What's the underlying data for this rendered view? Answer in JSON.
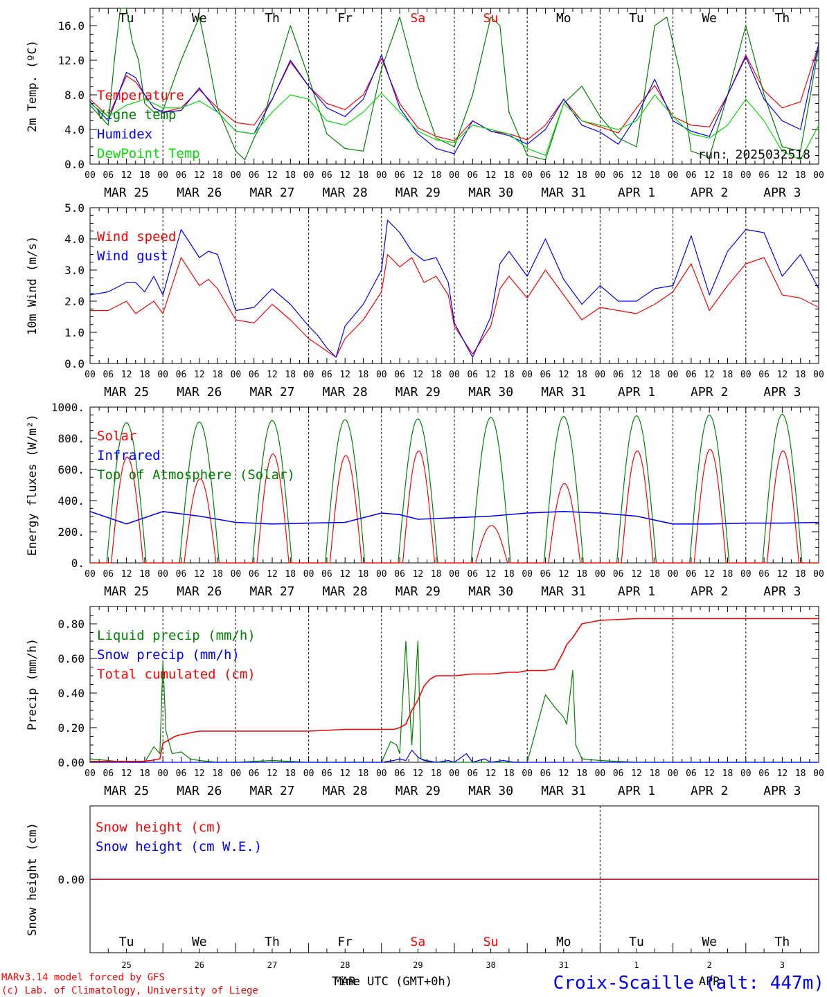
{
  "footer": {
    "model": "MARv3.14 model forced by GFS",
    "lab": "(c) Lab. of Climatology, University of Liege",
    "station": "Croix-Scaille (alt: 447m)",
    "xlabel": "Time UTC (GMT+0h)",
    "month_mar": "MAR",
    "month_apr": "APR"
  },
  "colors": {
    "red": "#ff0000",
    "green": "#008000",
    "blue": "#0000ff",
    "lightgreen": "#00e000"
  },
  "hour_ticks": [
    "00",
    "06",
    "12",
    "18"
  ],
  "dates": [
    "MAR 25",
    "MAR 26",
    "MAR 27",
    "MAR 28",
    "MAR 29",
    "MAR 30",
    "MAR 31",
    "APR  1",
    "APR  2",
    "APR  3"
  ],
  "weekdays": [
    {
      "label": "Tu",
      "weekend": false
    },
    {
      "label": "We",
      "weekend": false
    },
    {
      "label": "Th",
      "weekend": false
    },
    {
      "label": "Fr",
      "weekend": false
    },
    {
      "label": "Sa",
      "weekend": true
    },
    {
      "label": "Su",
      "weekend": true
    },
    {
      "label": "Mo",
      "weekend": false
    },
    {
      "label": "Tu",
      "weekend": false
    },
    {
      "label": "We",
      "weekend": false
    },
    {
      "label": "Th",
      "weekend": false
    }
  ],
  "bottom_days": [
    "25",
    "26",
    "27",
    "28",
    "29",
    "30",
    "31",
    "1",
    "2",
    "3"
  ],
  "chart_data": [
    {
      "type": "line",
      "ylabel": "2m Temp. (ºC)",
      "ylim": [
        0,
        18
      ],
      "yticks": [
        "0.0",
        "4.0",
        "8.0",
        "12.0",
        "16.0"
      ],
      "run_label": "run: 2025032518",
      "x_unit": "hours since MAR 25 00 UTC",
      "series": [
        {
          "name": "Temperature",
          "color": "red",
          "x": [
            0,
            6,
            12,
            15,
            18,
            21,
            24,
            30,
            36,
            42,
            48,
            54,
            60,
            66,
            72,
            78,
            84,
            90,
            96,
            102,
            108,
            114,
            120,
            126,
            132,
            138,
            144,
            150,
            156,
            162,
            168,
            174,
            180,
            186,
            192,
            198,
            204,
            210,
            216,
            222,
            228,
            234,
            240
          ],
          "y": [
            7.5,
            5.5,
            10.2,
            9.5,
            8.0,
            6.5,
            6.0,
            6.5,
            8.6,
            6.5,
            4.8,
            4.5,
            7.5,
            11.8,
            9.0,
            7.0,
            6.3,
            8.0,
            12.2,
            7.0,
            4.2,
            3.2,
            2.7,
            5.0,
            3.8,
            3.5,
            2.8,
            4.5,
            7.5,
            5.0,
            4.3,
            3.6,
            6.5,
            9.1,
            5.5,
            4.5,
            4.3,
            8.0,
            12.6,
            8.5,
            6.5,
            7.2,
            13.8
          ]
        },
        {
          "name": "Vigne temp",
          "color": "green",
          "x": [
            0,
            6,
            8,
            10,
            12,
            14,
            16,
            18,
            21,
            24,
            30,
            36,
            39,
            42,
            48,
            51,
            54,
            57,
            60,
            66,
            72,
            78,
            84,
            90,
            96,
            102,
            108,
            114,
            120,
            126,
            132,
            135,
            138,
            144,
            150,
            156,
            162,
            168,
            174,
            180,
            186,
            190,
            194,
            198,
            204,
            210,
            216,
            222,
            228,
            234,
            240
          ],
          "y": [
            6.8,
            4.5,
            12.0,
            18.0,
            18.0,
            14.0,
            12.0,
            7.0,
            6.0,
            6.2,
            12.0,
            17.0,
            12.0,
            6.5,
            1.5,
            0.5,
            3.0,
            5.0,
            9.0,
            16.0,
            10.0,
            3.5,
            1.8,
            1.5,
            11.0,
            17.0,
            9.0,
            3.0,
            2.0,
            8.0,
            17.0,
            16.0,
            6.0,
            1.0,
            0.5,
            7.0,
            9.0,
            5.5,
            3.0,
            2.0,
            16.0,
            17.0,
            11.0,
            1.5,
            0.8,
            8.0,
            16.0,
            8.0,
            2.0,
            1.5,
            13.5
          ]
        },
        {
          "name": "Humidex",
          "color": "blue",
          "x": [
            0,
            6,
            12,
            15,
            18,
            21,
            24,
            30,
            36,
            42,
            48,
            54,
            60,
            66,
            72,
            78,
            84,
            90,
            96,
            102,
            108,
            114,
            120,
            126,
            132,
            138,
            144,
            150,
            156,
            162,
            168,
            174,
            180,
            186,
            192,
            198,
            204,
            210,
            216,
            222,
            228,
            234,
            240
          ],
          "y": [
            7.2,
            5.0,
            10.6,
            10.0,
            8.0,
            6.5,
            6.0,
            6.2,
            8.8,
            6.0,
            3.8,
            3.5,
            7.5,
            12.0,
            9.0,
            6.5,
            5.5,
            7.5,
            12.6,
            6.5,
            3.5,
            1.8,
            1.2,
            5.0,
            3.8,
            3.3,
            2.3,
            4.0,
            7.5,
            4.5,
            3.7,
            2.3,
            5.5,
            9.8,
            5.0,
            3.8,
            3.2,
            8.0,
            12.4,
            7.5,
            5.0,
            4.0,
            13.9
          ]
        },
        {
          "name": "DewPoint Temp",
          "color": "lightgreen",
          "x": [
            0,
            6,
            12,
            18,
            24,
            30,
            36,
            42,
            48,
            54,
            60,
            66,
            72,
            78,
            84,
            90,
            96,
            102,
            108,
            114,
            120,
            126,
            132,
            138,
            144,
            150,
            156,
            162,
            168,
            174,
            180,
            186,
            192,
            198,
            204,
            210,
            216,
            222,
            228,
            234,
            240
          ],
          "y": [
            7.0,
            5.5,
            6.8,
            7.5,
            6.5,
            6.5,
            7.3,
            6.0,
            3.8,
            3.5,
            6.0,
            8.0,
            7.5,
            5.0,
            4.5,
            6.0,
            8.2,
            6.0,
            3.8,
            2.8,
            2.5,
            4.5,
            4.0,
            3.5,
            1.8,
            1.0,
            7.0,
            5.0,
            4.5,
            4.0,
            5.0,
            8.0,
            5.5,
            3.5,
            3.0,
            4.5,
            7.5,
            5.0,
            1.5,
            0.5,
            4.5
          ]
        }
      ]
    },
    {
      "type": "line",
      "ylabel": "10m Wind (m/s)",
      "ylim": [
        0,
        5
      ],
      "yticks": [
        "0.0",
        "1.0",
        "2.0",
        "3.0",
        "4.0",
        "5.0"
      ],
      "x_unit": "hours since MAR 25 00 UTC",
      "series": [
        {
          "name": "Wind speed",
          "color": "red",
          "x": [
            0,
            6,
            12,
            15,
            18,
            21,
            24,
            30,
            36,
            39,
            42,
            48,
            54,
            60,
            66,
            72,
            75,
            78,
            81,
            84,
            90,
            96,
            98,
            102,
            106,
            110,
            114,
            118,
            120,
            126,
            132,
            135,
            138,
            144,
            150,
            156,
            162,
            168,
            174,
            180,
            186,
            192,
            198,
            204,
            210,
            216,
            222,
            228,
            234,
            240
          ],
          "y": [
            1.7,
            1.7,
            2.0,
            1.6,
            1.8,
            2.0,
            1.6,
            3.4,
            2.5,
            2.7,
            2.4,
            1.4,
            1.3,
            1.9,
            1.4,
            0.8,
            0.6,
            0.4,
            0.2,
            0.8,
            1.4,
            2.3,
            3.5,
            3.1,
            3.4,
            2.6,
            2.8,
            2.2,
            1.2,
            0.3,
            1.2,
            2.4,
            2.8,
            2.1,
            3.0,
            2.2,
            1.4,
            1.8,
            1.7,
            1.6,
            1.9,
            2.3,
            3.2,
            1.7,
            2.5,
            3.2,
            3.4,
            2.2,
            2.1,
            1.8
          ]
        },
        {
          "name": "Wind gust",
          "color": "blue",
          "x": [
            0,
            6,
            12,
            15,
            18,
            21,
            24,
            30,
            36,
            39,
            42,
            48,
            54,
            60,
            66,
            72,
            75,
            78,
            81,
            84,
            90,
            96,
            98,
            102,
            106,
            110,
            114,
            118,
            120,
            126,
            132,
            135,
            138,
            144,
            150,
            156,
            162,
            168,
            174,
            180,
            186,
            192,
            198,
            204,
            210,
            216,
            222,
            228,
            234,
            240
          ],
          "y": [
            2.2,
            2.3,
            2.6,
            2.6,
            2.3,
            2.8,
            2.2,
            4.3,
            3.4,
            3.6,
            3.5,
            1.7,
            1.8,
            2.4,
            1.9,
            1.2,
            0.9,
            0.5,
            0.2,
            1.2,
            1.9,
            3.0,
            4.6,
            4.2,
            3.6,
            3.3,
            3.4,
            2.6,
            1.3,
            0.2,
            1.5,
            3.2,
            3.6,
            2.8,
            4.0,
            2.7,
            1.9,
            2.5,
            2.0,
            2.0,
            2.4,
            2.5,
            4.1,
            2.2,
            3.6,
            4.3,
            4.2,
            2.8,
            3.5,
            2.4
          ]
        }
      ]
    },
    {
      "type": "line",
      "ylabel": "Energy fluxes (W/m²)",
      "ylim": [
        0,
        1000
      ],
      "yticks": [
        "0.",
        "200.",
        "400.",
        "600.",
        "800.",
        "1000."
      ],
      "x_unit": "hours since MAR 25 00 UTC",
      "series": [
        {
          "name": "Solar",
          "color": "red",
          "peaks": [
            680,
            540,
            700,
            690,
            720,
            240,
            510,
            720,
            730,
            720
          ]
        },
        {
          "name": "Infrared",
          "color": "blue",
          "x": [
            0,
            12,
            24,
            36,
            48,
            60,
            72,
            84,
            96,
            102,
            108,
            120,
            132,
            144,
            156,
            168,
            180,
            192,
            204,
            216,
            228,
            240
          ],
          "y": [
            330,
            250,
            330,
            300,
            260,
            250,
            255,
            260,
            320,
            310,
            280,
            290,
            300,
            320,
            330,
            320,
            300,
            250,
            250,
            255,
            255,
            260
          ]
        },
        {
          "name": "Top of Atmosphere (Solar)",
          "color": "green",
          "peaks": [
            900,
            905,
            915,
            920,
            925,
            935,
            940,
            945,
            950,
            955
          ]
        }
      ]
    },
    {
      "type": "line",
      "ylabel": "Precip (mm/h)",
      "ylim": [
        0,
        0.9
      ],
      "yticks": [
        "0.00",
        "0.20",
        "0.40",
        "0.60",
        "0.80"
      ],
      "x_unit": "hours since MAR 25 00 UTC",
      "series": [
        {
          "name": "Liquid precip (mm/h)",
          "color": "green",
          "x": [
            0,
            6,
            12,
            18,
            21,
            23,
            24,
            25,
            27,
            30,
            33,
            36,
            42,
            48,
            60,
            72,
            84,
            96,
            99,
            101,
            102,
            104,
            106,
            108,
            109,
            111,
            114,
            120,
            126,
            132,
            144,
            150,
            153,
            156,
            157,
            159,
            160,
            162,
            168,
            180,
            240
          ],
          "y": [
            0.02,
            0.01,
            0.0,
            0.0,
            0.09,
            0.05,
            0.58,
            0.18,
            0.05,
            0.06,
            0.02,
            0.01,
            0.0,
            0.0,
            0.01,
            0.0,
            0.0,
            0.0,
            0.12,
            0.1,
            0.05,
            0.7,
            0.1,
            0.7,
            0.02,
            0.01,
            0.0,
            0.0,
            0.0,
            0.0,
            0.0,
            0.39,
            0.32,
            0.26,
            0.22,
            0.53,
            0.1,
            0.02,
            0.01,
            0.0,
            0.0
          ]
        },
        {
          "name": "Snow precip (mm/h)",
          "color": "blue",
          "x": [
            0,
            24,
            96,
            100,
            102,
            104,
            106,
            108,
            110,
            114,
            118,
            120,
            124,
            126,
            130,
            132,
            136,
            140,
            144,
            240
          ],
          "y": [
            0.0,
            0.0,
            0.0,
            0.01,
            0.02,
            0.01,
            0.07,
            0.03,
            0.01,
            0.0,
            0.01,
            0.0,
            0.05,
            0.0,
            0.02,
            0.0,
            0.01,
            0.0,
            0.0,
            0.0
          ]
        },
        {
          "name": "Total cumulated (cm)",
          "color": "red",
          "x": [
            0,
            17,
            20,
            23,
            24,
            26,
            28,
            30,
            36,
            42,
            48,
            60,
            72,
            84,
            96,
            100,
            102,
            104,
            106,
            108,
            110,
            112,
            114,
            120,
            126,
            132,
            138,
            141,
            144,
            147,
            150,
            153,
            156,
            157,
            159,
            162,
            168,
            180,
            192,
            240
          ],
          "y": [
            0.005,
            0.005,
            0.01,
            0.02,
            0.11,
            0.13,
            0.15,
            0.16,
            0.18,
            0.18,
            0.18,
            0.18,
            0.18,
            0.19,
            0.19,
            0.19,
            0.2,
            0.22,
            0.3,
            0.36,
            0.44,
            0.48,
            0.5,
            0.5,
            0.51,
            0.51,
            0.52,
            0.52,
            0.53,
            0.53,
            0.53,
            0.54,
            0.64,
            0.68,
            0.72,
            0.8,
            0.82,
            0.83,
            0.83,
            0.83
          ]
        }
      ]
    },
    {
      "type": "line",
      "ylabel": "Snow height (cm)",
      "yticks": [
        "0.00"
      ],
      "x_unit": "hours since MAR 25 00 UTC",
      "series": [
        {
          "name": "Snow height (cm)",
          "color": "red",
          "x": [
            0,
            240
          ],
          "y": [
            0.0,
            0.0
          ]
        },
        {
          "name": "Snow height (cm W.E.)",
          "color": "blue",
          "x": [
            0,
            240
          ],
          "y": [
            0.0,
            0.0
          ]
        }
      ]
    }
  ]
}
